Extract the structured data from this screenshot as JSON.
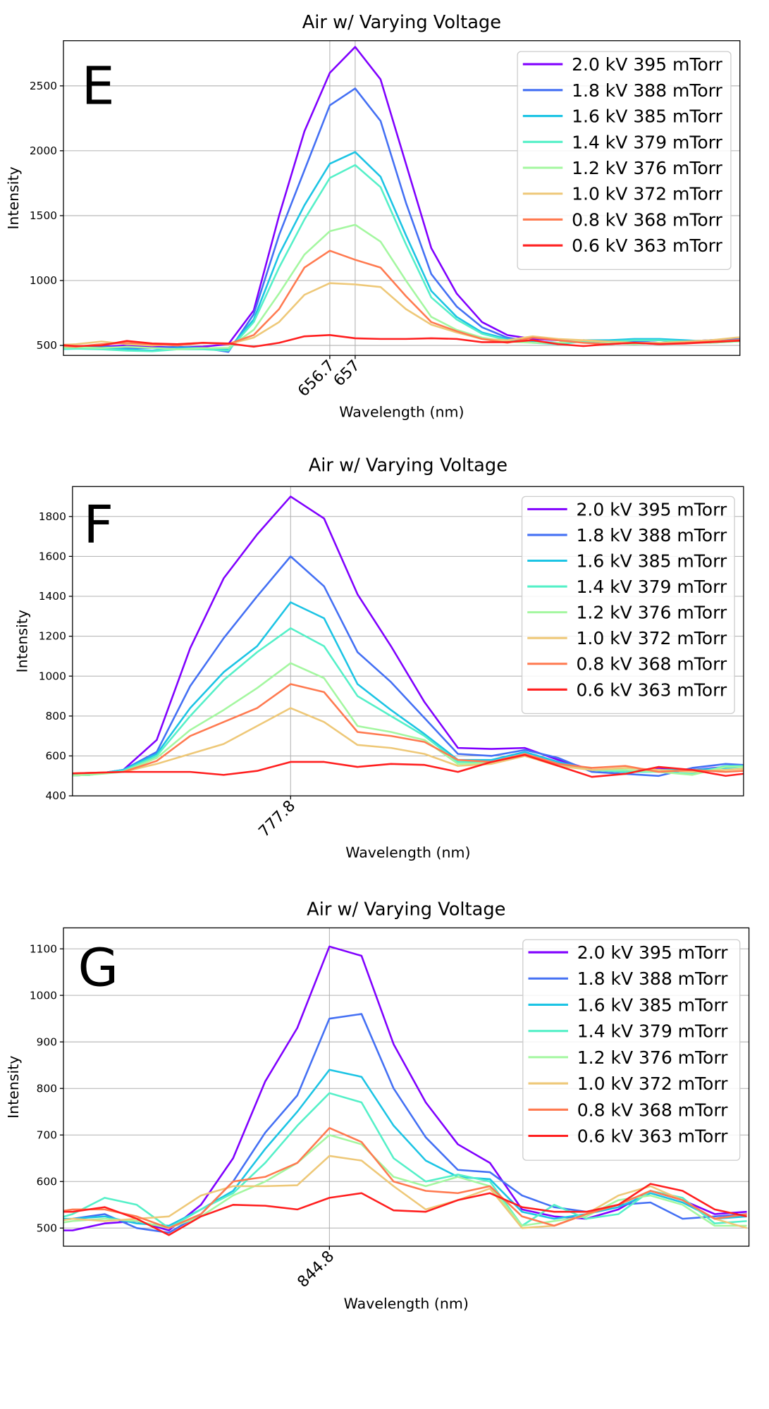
{
  "chart_data": [
    {
      "type": "line",
      "title": "Air w/ Varying Voltage",
      "annotation": "E",
      "xlabel": "Wavelength (nm)",
      "ylabel": "Intensity",
      "x": [
        653.4,
        653.7,
        654.0,
        654.3,
        654.6,
        654.9,
        655.2,
        655.5,
        655.8,
        656.1,
        656.4,
        656.7,
        657.0,
        657.3,
        657.6,
        657.9,
        658.2,
        658.5,
        658.8,
        659.1,
        659.4,
        659.7,
        660.0,
        660.3,
        660.6,
        660.9,
        661.2,
        661.5,
        661.8
      ],
      "xlim": [
        653.55,
        661.55
      ],
      "xticks": [
        656.7,
        657.0
      ],
      "ylim": [
        423,
        2848
      ],
      "yticks": [
        500,
        1000,
        1500,
        2000,
        2500
      ],
      "grid": true,
      "legend": "upper right",
      "series": [
        {
          "name": "2.0 kV 395 mTorr",
          "color": "#8000ff",
          "values": [
            490,
            485,
            490,
            500,
            490,
            485,
            490,
            510,
            770,
            1500,
            2150,
            2600,
            2800,
            2550,
            1900,
            1250,
            900,
            680,
            580,
            550,
            540,
            530,
            520,
            530,
            520,
            530,
            540,
            550,
            560
          ]
        },
        {
          "name": "1.8 kV 388 mTorr",
          "color": "#4470f4",
          "values": [
            490,
            485,
            490,
            480,
            480,
            490,
            480,
            450,
            740,
            1350,
            1850,
            2350,
            2480,
            2230,
            1600,
            1050,
            800,
            640,
            560,
            530,
            520,
            540,
            530,
            530,
            520,
            530,
            540,
            550,
            560
          ]
        },
        {
          "name": "1.6 kV 385 mTorr",
          "color": "#1cc4e4",
          "values": [
            470,
            475,
            480,
            470,
            460,
            480,
            480,
            470,
            700,
            1200,
            1580,
            1900,
            1990,
            1800,
            1350,
            920,
            720,
            600,
            550,
            530,
            520,
            540,
            540,
            550,
            550,
            540,
            530,
            540,
            550
          ]
        },
        {
          "name": "1.4 kV 379 mTorr",
          "color": "#55f0c8",
          "values": [
            470,
            475,
            470,
            460,
            455,
            470,
            470,
            460,
            680,
            1100,
            1470,
            1790,
            1890,
            1720,
            1280,
            870,
            700,
            590,
            540,
            520,
            510,
            530,
            530,
            540,
            540,
            530,
            520,
            530,
            540
          ]
        },
        {
          "name": "1.2 kV 376 mTorr",
          "color": "#a4f7a0",
          "values": [
            480,
            485,
            480,
            490,
            480,
            470,
            480,
            480,
            620,
            900,
            1200,
            1380,
            1430,
            1300,
            1000,
            720,
            620,
            560,
            530,
            520,
            520,
            540,
            520,
            510,
            520,
            520,
            520,
            530,
            540
          ]
        },
        {
          "name": "1.0 kV 372 mTorr",
          "color": "#eec878",
          "values": [
            500,
            510,
            530,
            510,
            500,
            510,
            520,
            510,
            560,
            680,
            890,
            980,
            970,
            950,
            780,
            660,
            600,
            550,
            540,
            570,
            550,
            540,
            530,
            520,
            520,
            530,
            540,
            560,
            570
          ]
        },
        {
          "name": "0.8 kV 368 mTorr",
          "color": "#ff7a50",
          "values": [
            500,
            490,
            510,
            520,
            510,
            500,
            520,
            510,
            580,
            780,
            1100,
            1230,
            1160,
            1100,
            880,
            680,
            610,
            550,
            520,
            560,
            540,
            520,
            510,
            520,
            510,
            520,
            530,
            540,
            550
          ]
        },
        {
          "name": "0.6 kV 363 mTorr",
          "color": "#ff1f1f",
          "values": [
            510,
            495,
            500,
            535,
            515,
            510,
            520,
            515,
            490,
            520,
            570,
            580,
            555,
            550,
            550,
            555,
            550,
            525,
            525,
            540,
            510,
            495,
            510,
            520,
            510,
            515,
            525,
            535,
            545
          ]
        }
      ]
    },
    {
      "type": "line",
      "title": "Air w/ Varying Voltage",
      "annotation": "F",
      "xlabel": "Wavelength (nm)",
      "ylabel": "Intensity",
      "x": [
        775.7,
        776.0,
        776.3,
        776.6,
        776.9,
        777.2,
        777.5,
        777.8,
        778.1,
        778.4,
        778.7,
        779.0,
        779.3,
        779.6,
        779.9,
        780.2,
        780.5,
        780.8,
        781.1,
        781.4,
        781.7,
        782.0
      ],
      "xlim": [
        775.845,
        781.86
      ],
      "xticks": [
        777.8
      ],
      "ylim": [
        400,
        1950
      ],
      "yticks": [
        400,
        600,
        800,
        1000,
        1200,
        1400,
        1600,
        1800
      ],
      "grid": true,
      "legend": "upper right",
      "series": [
        {
          "name": "2.0 kV 395 mTorr",
          "color": "#8000ff",
          "values": [
            500,
            505,
            530,
            680,
            1140,
            1490,
            1710,
            1900,
            1790,
            1410,
            1150,
            870,
            640,
            635,
            640,
            580,
            530,
            520,
            540,
            530,
            545,
            550
          ]
        },
        {
          "name": "1.8 kV 388 mTorr",
          "color": "#4470f4",
          "values": [
            500,
            505,
            530,
            620,
            950,
            1190,
            1400,
            1600,
            1450,
            1120,
            970,
            790,
            610,
            600,
            630,
            590,
            520,
            510,
            500,
            540,
            560,
            550
          ]
        },
        {
          "name": "1.6 kV 385 mTorr",
          "color": "#1cc4e4",
          "values": [
            500,
            505,
            530,
            610,
            840,
            1020,
            1150,
            1370,
            1290,
            960,
            830,
            710,
            580,
            580,
            620,
            570,
            530,
            520,
            530,
            530,
            540,
            550
          ]
        },
        {
          "name": "1.4 kV 379 mTorr",
          "color": "#55f0c8",
          "values": [
            500,
            505,
            525,
            600,
            800,
            980,
            1120,
            1240,
            1150,
            900,
            800,
            700,
            570,
            570,
            610,
            560,
            530,
            520,
            520,
            510,
            550,
            550
          ]
        },
        {
          "name": "1.2 kV 376 mTorr",
          "color": "#a4f7a0",
          "values": [
            500,
            505,
            520,
            590,
            730,
            830,
            940,
            1065,
            990,
            750,
            720,
            680,
            560,
            565,
            605,
            550,
            530,
            530,
            520,
            505,
            545,
            545
          ]
        },
        {
          "name": "1.0 kV 372 mTorr",
          "color": "#eec878",
          "values": [
            510,
            515,
            520,
            560,
            610,
            660,
            750,
            840,
            770,
            655,
            640,
            610,
            550,
            560,
            600,
            550,
            530,
            540,
            530,
            520,
            530,
            540
          ]
        },
        {
          "name": "0.8 kV 368 mTorr",
          "color": "#ff7a50",
          "values": [
            510,
            515,
            520,
            575,
            700,
            770,
            840,
            960,
            920,
            720,
            700,
            670,
            580,
            570,
            610,
            560,
            540,
            550,
            520,
            530,
            520,
            530
          ]
        },
        {
          "name": "0.6 kV 363 mTorr",
          "color": "#ff1f1f",
          "values": [
            510,
            515,
            520,
            520,
            520,
            505,
            525,
            570,
            570,
            545,
            560,
            555,
            520,
            570,
            605,
            550,
            495,
            510,
            545,
            530,
            500,
            520
          ]
        }
      ]
    },
    {
      "type": "line",
      "title": "Air w/ Varying Voltage",
      "annotation": "G",
      "xlabel": "Wavelength (nm)",
      "ylabel": "Intensity",
      "x": [
        842.1,
        842.4,
        842.7,
        843.0,
        843.3,
        843.6,
        843.9,
        844.2,
        844.5,
        844.8,
        845.1,
        845.4,
        845.7,
        846.0,
        846.3,
        846.6,
        846.9,
        847.2,
        847.5,
        847.8,
        848.1,
        848.4,
        848.7
      ],
      "xlim": [
        842.315,
        848.72
      ],
      "xticks": [
        844.8
      ],
      "ylim": [
        461,
        1145
      ],
      "yticks": [
        500,
        600,
        700,
        800,
        900,
        1000,
        1100
      ],
      "grid": true,
      "legend": "upper right",
      "series": [
        {
          "name": "2.0 kV 395 mTorr",
          "color": "#8000ff",
          "values": [
            495,
            495,
            510,
            515,
            495,
            550,
            650,
            815,
            930,
            1105,
            1085,
            895,
            770,
            680,
            640,
            540,
            525,
            520,
            540,
            580,
            560,
            530,
            535
          ]
        },
        {
          "name": "1.8 kV 388 mTorr",
          "color": "#4470f4",
          "values": [
            515,
            520,
            530,
            500,
            490,
            530,
            600,
            705,
            785,
            950,
            960,
            800,
            695,
            625,
            620,
            570,
            545,
            535,
            550,
            555,
            520,
            525,
            530
          ]
        },
        {
          "name": "1.6 kV 385 mTorr",
          "color": "#1cc4e4",
          "values": [
            520,
            520,
            525,
            510,
            505,
            540,
            580,
            670,
            750,
            840,
            825,
            720,
            645,
            610,
            605,
            535,
            520,
            530,
            545,
            575,
            555,
            520,
            525
          ]
        },
        {
          "name": "1.4 kV 379 mTorr",
          "color": "#55f0c8",
          "values": [
            510,
            530,
            565,
            550,
            500,
            540,
            575,
            640,
            720,
            790,
            770,
            650,
            600,
            615,
            600,
            505,
            550,
            520,
            530,
            580,
            565,
            510,
            515
          ]
        },
        {
          "name": "1.2 kV 376 mTorr",
          "color": "#a4f7a0",
          "values": [
            505,
            515,
            520,
            515,
            500,
            525,
            570,
            600,
            640,
            700,
            680,
            610,
            590,
            610,
            590,
            505,
            515,
            525,
            560,
            570,
            550,
            505,
            505
          ]
        },
        {
          "name": "1.0 kV 372 mTorr",
          "color": "#eec878",
          "values": [
            510,
            520,
            515,
            520,
            525,
            570,
            590,
            590,
            592,
            655,
            645,
            590,
            540,
            560,
            585,
            500,
            505,
            530,
            570,
            590,
            560,
            520,
            500
          ]
        },
        {
          "name": "0.8 kV 368 mTorr",
          "color": "#ff7a50",
          "values": [
            530,
            540,
            540,
            525,
            500,
            530,
            600,
            610,
            640,
            715,
            685,
            600,
            580,
            575,
            590,
            525,
            505,
            530,
            550,
            580,
            560,
            520,
            530
          ]
        },
        {
          "name": "0.6 kV 363 mTorr",
          "color": "#ff1f1f",
          "values": [
            535,
            535,
            545,
            520,
            485,
            525,
            550,
            548,
            540,
            565,
            575,
            538,
            535,
            560,
            575,
            545,
            535,
            535,
            550,
            595,
            580,
            540,
            525
          ]
        }
      ]
    }
  ]
}
